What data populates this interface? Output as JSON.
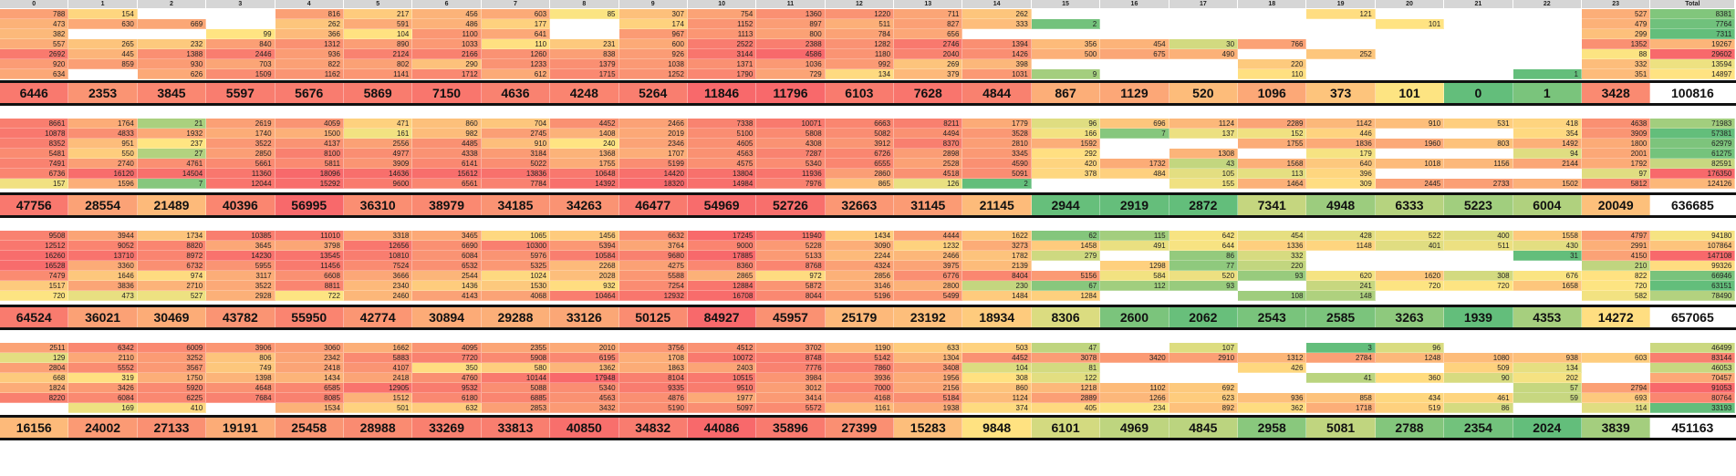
{
  "headers": [
    "0",
    "1",
    "2",
    "3",
    "4",
    "5",
    "6",
    "7",
    "8",
    "9",
    "10",
    "11",
    "12",
    "13",
    "14",
    "15",
    "16",
    "17",
    "18",
    "19",
    "20",
    "21",
    "22",
    "23",
    "Total"
  ],
  "blocks": [
    {
      "rows": [
        [
          "788",
          "154",
          "",
          "",
          "816",
          "217",
          "456",
          "603",
          "85",
          "307",
          "754",
          "1360",
          "1220",
          "711",
          "262",
          "",
          "",
          "",
          "",
          "121",
          "",
          "",
          "",
          "527",
          "8381"
        ],
        [
          "473",
          "630",
          "669",
          "",
          "262",
          "591",
          "486",
          "177",
          "",
          "174",
          "1152",
          "897",
          "511",
          "827",
          "333",
          "2",
          "",
          "",
          "",
          "",
          "101",
          "",
          "",
          "479",
          "7764"
        ],
        [
          "382",
          "",
          "",
          "99",
          "366",
          "104",
          "1100",
          "641",
          "",
          "967",
          "1113",
          "800",
          "784",
          "656",
          "",
          "",
          "",
          "",
          "",
          "",
          "",
          "",
          "",
          "299",
          "7311"
        ],
        [
          "557",
          "265",
          "232",
          "840",
          "1312",
          "890",
          "1033",
          "110",
          "231",
          "600",
          "2522",
          "2388",
          "1282",
          "2746",
          "1394",
          "356",
          "454",
          "30",
          "766",
          "",
          "",
          "",
          "",
          "1352",
          "19267"
        ],
        [
          "2692",
          "445",
          "1388",
          "2446",
          "936",
          "2124",
          "2166",
          "1260",
          "838",
          "926",
          "3144",
          "4586",
          "1180",
          "2040",
          "1426",
          "500",
          "675",
          "490",
          "",
          "252",
          "",
          "",
          "",
          "88",
          "29602"
        ],
        [
          "920",
          "859",
          "930",
          "703",
          "822",
          "802",
          "290",
          "1233",
          "1379",
          "1038",
          "1371",
          "1036",
          "992",
          "269",
          "398",
          "",
          "",
          "",
          "220",
          "",
          "",
          "",
          "",
          "332",
          "13594"
        ],
        [
          "634",
          "",
          "626",
          "1509",
          "1162",
          "1141",
          "1712",
          "612",
          "1715",
          "1252",
          "1790",
          "729",
          "134",
          "379",
          "1031",
          "9",
          "",
          "",
          "110",
          "",
          "",
          "",
          "1",
          "351",
          "14897"
        ]
      ],
      "totals": [
        "6446",
        "2353",
        "3845",
        "5597",
        "5676",
        "5869",
        "7150",
        "4636",
        "4248",
        "5264",
        "11846",
        "11796",
        "6103",
        "7628",
        "4844",
        "867",
        "1129",
        "520",
        "1096",
        "373",
        "101",
        "0",
        "1",
        "3428",
        "100816"
      ]
    },
    {
      "rows": [
        [
          "8661",
          "1764",
          "21",
          "2619",
          "4059",
          "471",
          "860",
          "704",
          "4452",
          "2466",
          "7338",
          "10071",
          "6663",
          "8211",
          "1779",
          "96",
          "696",
          "1124",
          "2289",
          "1142",
          "910",
          "531",
          "418",
          "4638",
          "71983"
        ],
        [
          "10878",
          "4833",
          "1932",
          "1740",
          "1500",
          "161",
          "982",
          "2745",
          "1408",
          "2019",
          "5100",
          "5808",
          "5082",
          "4494",
          "3528",
          "166",
          "7",
          "137",
          "152",
          "446",
          "",
          "",
          "354",
          "3909",
          "57381"
        ],
        [
          "8352",
          "951",
          "237",
          "3522",
          "4137",
          "2556",
          "4485",
          "910",
          "240",
          "2346",
          "4605",
          "4308",
          "3912",
          "8370",
          "2810",
          "1592",
          "",
          "",
          "1755",
          "1836",
          "1960",
          "803",
          "1492",
          "1800",
          "62979"
        ],
        [
          "5481",
          "550",
          "27",
          "2850",
          "8100",
          "4977",
          "4338",
          "3184",
          "1368",
          "1707",
          "4563",
          "7287",
          "6726",
          "2898",
          "3345",
          "292",
          "",
          "1308",
          "",
          "179",
          "",
          "",
          "94",
          "2001",
          "61275"
        ],
        [
          "7491",
          "2740",
          "4761",
          "5661",
          "5811",
          "3909",
          "6141",
          "5022",
          "1755",
          "5199",
          "4575",
          "5340",
          "6555",
          "2528",
          "4590",
          "420",
          "1732",
          "43",
          "1568",
          "640",
          "1018",
          "1156",
          "2144",
          "1792",
          "82591"
        ],
        [
          "6736",
          "16120",
          "14504",
          "11360",
          "18096",
          "14636",
          "15612",
          "13836",
          "10648",
          "14420",
          "13804",
          "11936",
          "2860",
          "4518",
          "5091",
          "378",
          "484",
          "105",
          "113",
          "396",
          "",
          "",
          "",
          "97",
          "176350"
        ],
        [
          "157",
          "1596",
          "7",
          "12044",
          "15292",
          "9600",
          "6561",
          "7784",
          "14392",
          "18320",
          "14984",
          "7976",
          "865",
          "126",
          "2",
          "",
          "",
          "155",
          "1464",
          "309",
          "2445",
          "2733",
          "1502",
          "5812",
          "124126"
        ]
      ],
      "totals": [
        "47756",
        "28554",
        "21489",
        "40396",
        "56995",
        "36310",
        "38979",
        "34185",
        "34263",
        "46477",
        "54969",
        "52726",
        "32663",
        "31145",
        "21145",
        "2944",
        "2919",
        "2872",
        "7341",
        "4948",
        "6333",
        "5223",
        "6004",
        "20049",
        "636685"
      ]
    },
    {
      "rows": [
        [
          "9508",
          "3944",
          "1734",
          "10385",
          "11010",
          "3318",
          "3465",
          "1065",
          "1456",
          "6632",
          "17245",
          "11940",
          "1434",
          "4444",
          "1622",
          "62",
          "115",
          "642",
          "454",
          "428",
          "522",
          "400",
          "1558",
          "4797",
          "94180"
        ],
        [
          "12512",
          "9052",
          "8820",
          "3645",
          "3798",
          "12656",
          "6690",
          "10300",
          "5394",
          "3764",
          "9000",
          "5228",
          "3090",
          "1232",
          "3273",
          "1458",
          "491",
          "644",
          "1336",
          "1148",
          "401",
          "511",
          "430",
          "2991",
          "107864"
        ],
        [
          "16260",
          "13710",
          "8972",
          "14230",
          "13545",
          "10810",
          "6084",
          "5976",
          "10584",
          "9680",
          "17885",
          "5133",
          "2244",
          "2466",
          "1782",
          "279",
          "",
          "86",
          "332",
          "",
          "",
          "",
          "31",
          "4150",
          "147108"
        ],
        [
          "16528",
          "3360",
          "6732",
          "5955",
          "11456",
          "7524",
          "6532",
          "5325",
          "2268",
          "4275",
          "8360",
          "8768",
          "4324",
          "3975",
          "2139",
          "",
          "1298",
          "77",
          "220",
          "",
          "",
          "",
          "",
          "210",
          "99326"
        ],
        [
          "7479",
          "1646",
          "974",
          "3117",
          "6608",
          "3666",
          "2544",
          "1024",
          "2028",
          "5588",
          "2865",
          "972",
          "2856",
          "6776",
          "8404",
          "5156",
          "584",
          "520",
          "93",
          "620",
          "1620",
          "308",
          "676",
          "822",
          "66946"
        ],
        [
          "1517",
          "3836",
          "2710",
          "3522",
          "8811",
          "2340",
          "1436",
          "1530",
          "932",
          "7254",
          "12884",
          "5872",
          "3146",
          "2800",
          "230",
          "67",
          "112",
          "93",
          "",
          "241",
          "720",
          "720",
          "1658",
          "720",
          "63151"
        ],
        [
          "720",
          "473",
          "527",
          "2928",
          "722",
          "2460",
          "4143",
          "4068",
          "10464",
          "12932",
          "16708",
          "8044",
          "5196",
          "5499",
          "1484",
          "1284",
          "",
          "",
          "108",
          "148",
          "",
          "",
          "",
          "582",
          "78490"
        ]
      ],
      "totals": [
        "64524",
        "36021",
        "30469",
        "43782",
        "55950",
        "42774",
        "30894",
        "29288",
        "33126",
        "50125",
        "84927",
        "45957",
        "25179",
        "23192",
        "18934",
        "8306",
        "2600",
        "2062",
        "2543",
        "2585",
        "3263",
        "1939",
        "4353",
        "14272",
        "657065"
      ]
    },
    {
      "rows": [
        [
          "2511",
          "6342",
          "6009",
          "3906",
          "3060",
          "1662",
          "4095",
          "2355",
          "2010",
          "3756",
          "4512",
          "3702",
          "1190",
          "633",
          "503",
          "47",
          "",
          "107",
          "",
          "3",
          "96",
          "",
          "",
          "",
          "46499"
        ],
        [
          "129",
          "2110",
          "3252",
          "806",
          "2342",
          "5883",
          "7720",
          "5908",
          "6195",
          "1708",
          "10072",
          "8748",
          "5142",
          "1304",
          "4452",
          "3078",
          "3420",
          "2910",
          "1312",
          "2784",
          "1248",
          "1080",
          "938",
          "603",
          "83144"
        ],
        [
          "2804",
          "5552",
          "3567",
          "749",
          "2418",
          "4107",
          "350",
          "580",
          "1362",
          "1863",
          "2403",
          "7776",
          "7860",
          "3408",
          "104",
          "81",
          "",
          "",
          "426",
          "",
          "",
          "509",
          "134",
          "",
          "46053"
        ],
        [
          "668",
          "319",
          "1750",
          "1398",
          "1434",
          "2418",
          "4760",
          "10144",
          "17948",
          "8104",
          "10515",
          "3984",
          "3936",
          "1956",
          "308",
          "122",
          "",
          "",
          "",
          "41",
          "360",
          "90",
          "202",
          "",
          "70457"
        ],
        [
          "1824",
          "3426",
          "5920",
          "4648",
          "6585",
          "12905",
          "9532",
          "5088",
          "5340",
          "9335",
          "9510",
          "3012",
          "7000",
          "2156",
          "860",
          "1218",
          "1102",
          "692",
          "",
          "",
          "",
          "",
          "57",
          "2794",
          "91053"
        ],
        [
          "8220",
          "6084",
          "6225",
          "7684",
          "8085",
          "1512",
          "6180",
          "6885",
          "4563",
          "4876",
          "1977",
          "3414",
          "4168",
          "5184",
          "1124",
          "2889",
          "1266",
          "623",
          "936",
          "858",
          "434",
          "461",
          "59",
          "693",
          "80764"
        ],
        [
          "",
          "169",
          "410",
          "",
          "1534",
          "501",
          "632",
          "2853",
          "3432",
          "5190",
          "5097",
          "5572",
          "1161",
          "1938",
          "374",
          "405",
          "234",
          "892",
          "362",
          "1718",
          "519",
          "86",
          "",
          "114",
          "33193"
        ]
      ],
      "totals": [
        "16156",
        "24002",
        "27133",
        "19191",
        "25458",
        "28988",
        "33269",
        "33813",
        "40850",
        "34832",
        "44086",
        "35896",
        "27399",
        "15283",
        "9848",
        "6101",
        "4969",
        "4845",
        "2958",
        "5081",
        "2788",
        "2354",
        "2024",
        "3839",
        "451163"
      ]
    }
  ]
}
